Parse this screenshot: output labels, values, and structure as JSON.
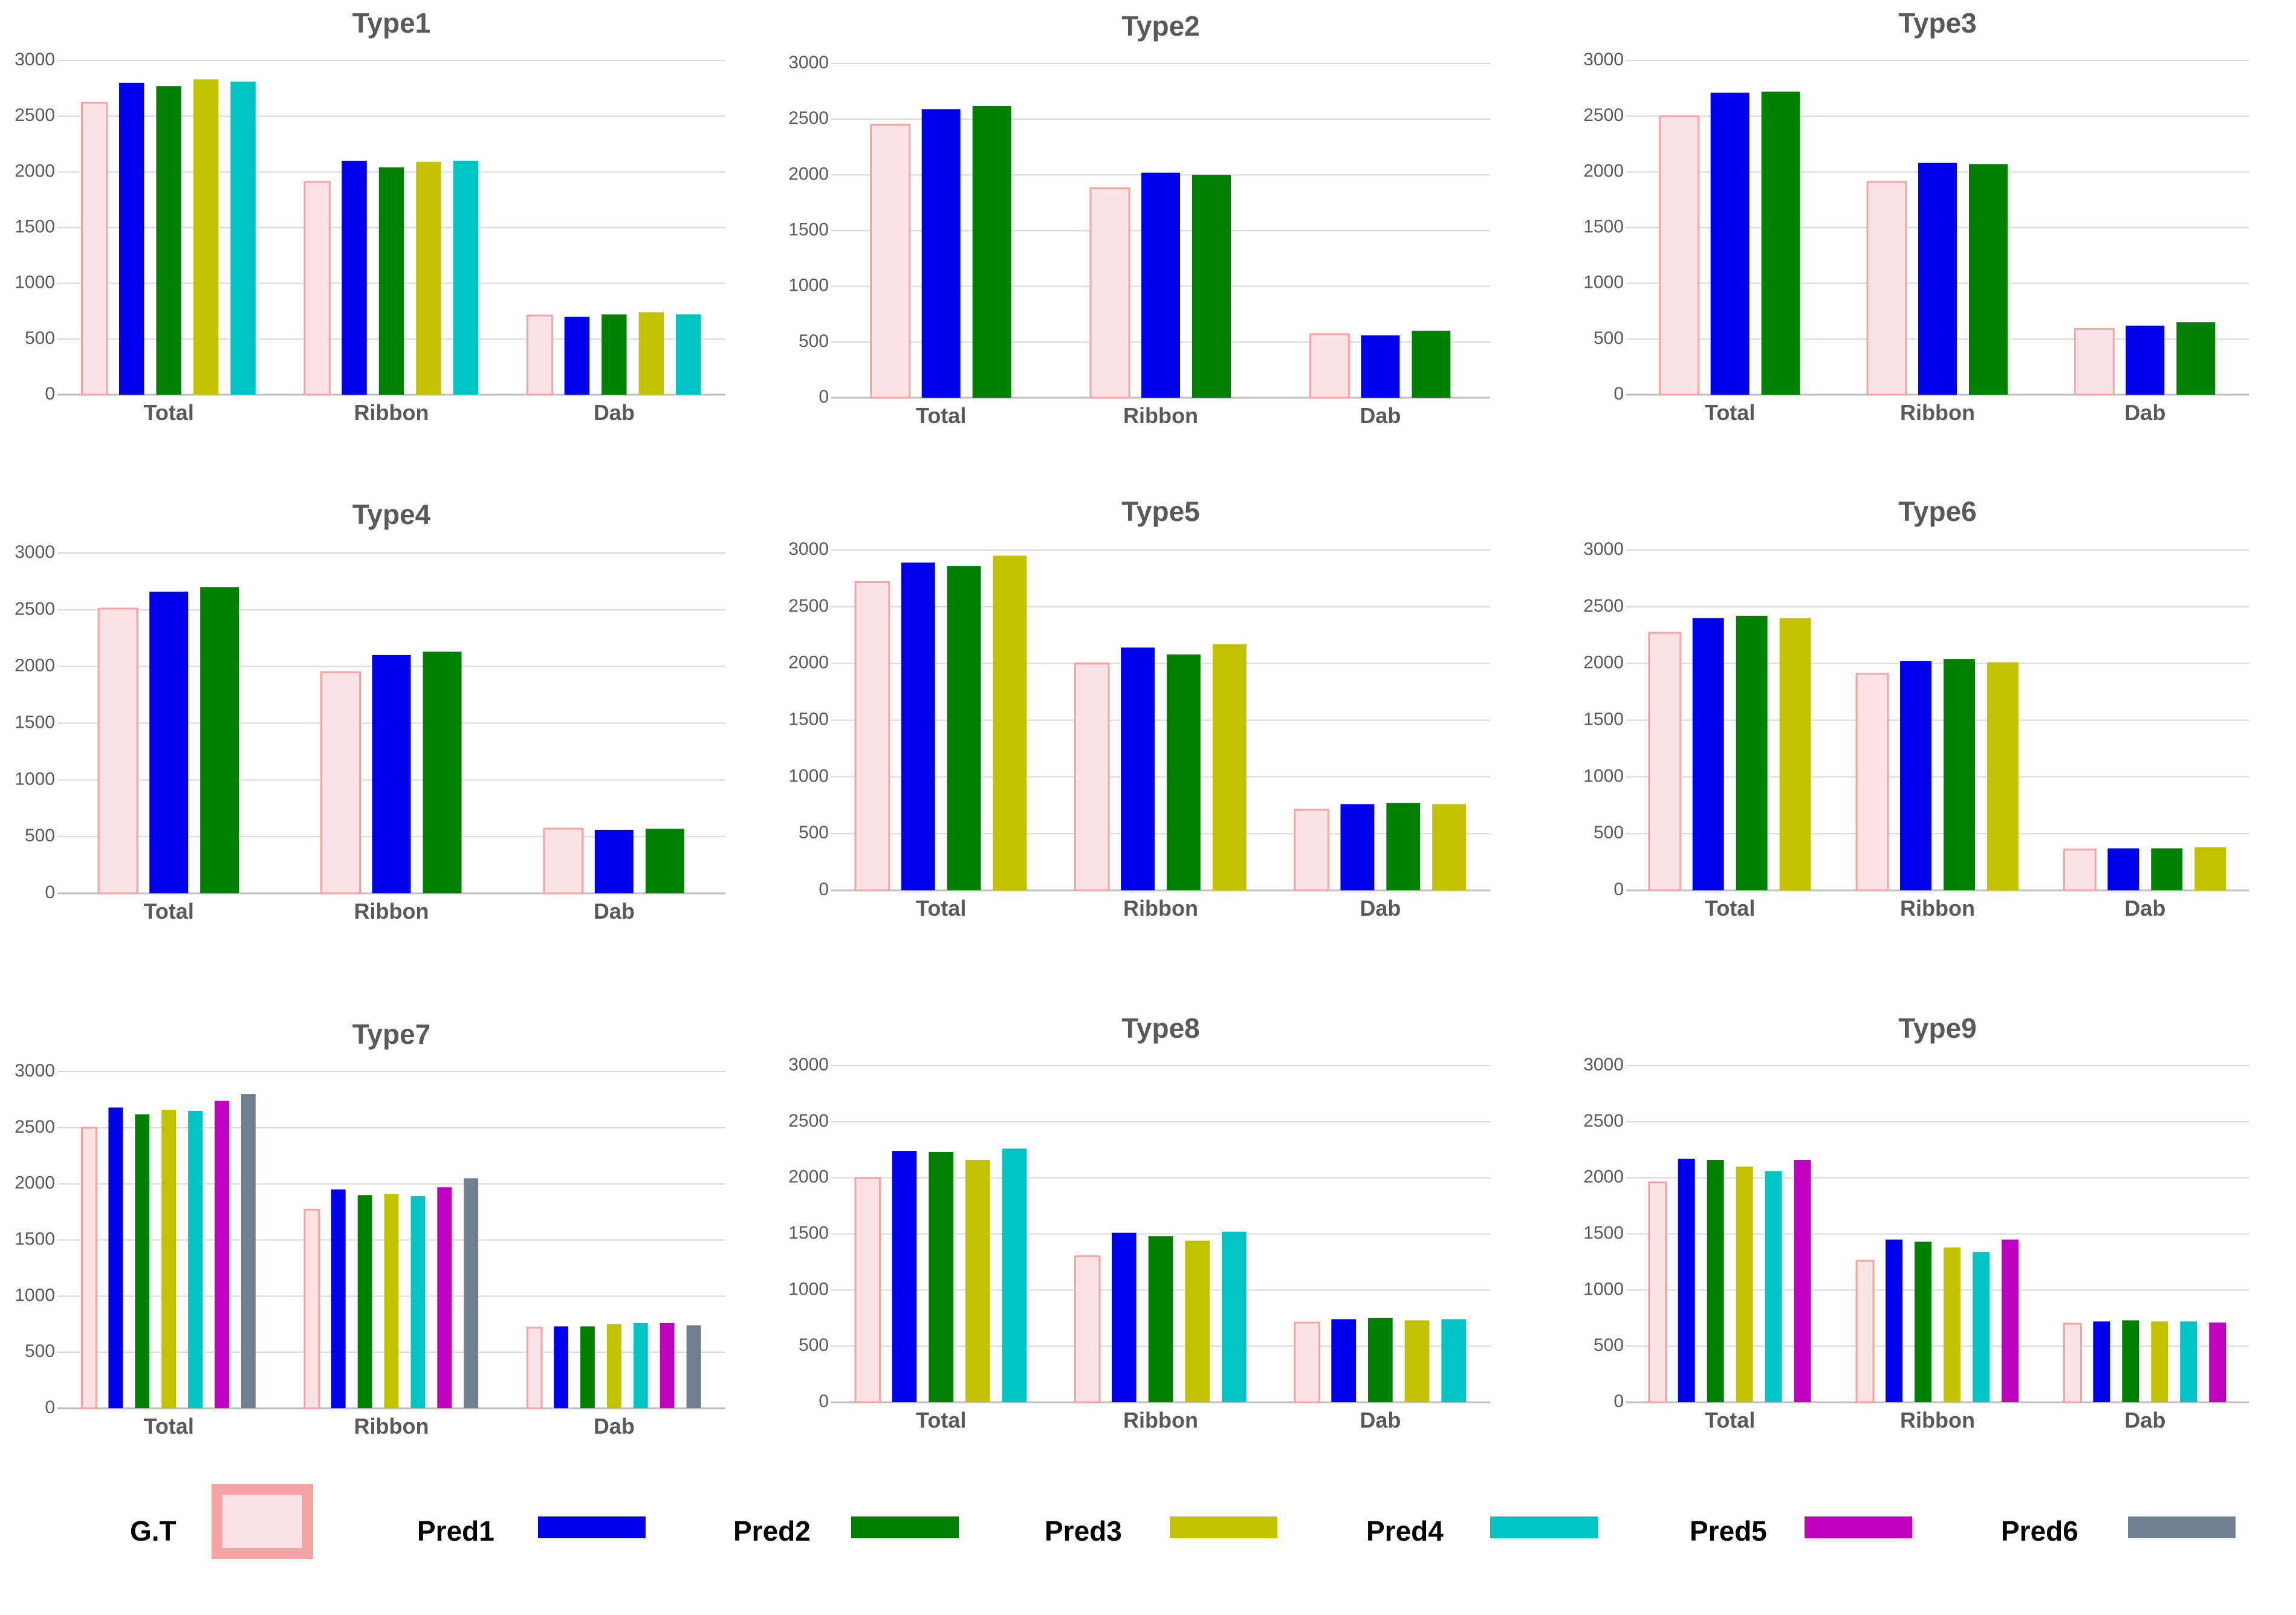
{
  "chart_data": [
    {
      "type": "bar",
      "title": "Type1",
      "categories": [
        "Total",
        "Ribbon",
        "Dab"
      ],
      "ylim": [
        0,
        3000
      ],
      "yticks": [
        0,
        500,
        1000,
        1500,
        2000,
        2500,
        3000
      ],
      "series": [
        {
          "name": "G.T",
          "values": [
            2620,
            1910,
            710
          ]
        },
        {
          "name": "Pred1",
          "values": [
            2800,
            2100,
            700
          ]
        },
        {
          "name": "Pred2",
          "values": [
            2770,
            2040,
            720
          ]
        },
        {
          "name": "Pred3",
          "values": [
            2830,
            2090,
            740
          ]
        },
        {
          "name": "Pred4",
          "values": [
            2810,
            2100,
            720
          ]
        }
      ]
    },
    {
      "type": "bar",
      "title": "Type2",
      "categories": [
        "Total",
        "Ribbon",
        "Dab"
      ],
      "ylim": [
        0,
        3000
      ],
      "yticks": [
        0,
        500,
        1000,
        1500,
        2000,
        2500,
        3000
      ],
      "series": [
        {
          "name": "G.T",
          "values": [
            2450,
            1880,
            570
          ]
        },
        {
          "name": "Pred1",
          "values": [
            2590,
            2020,
            560
          ]
        },
        {
          "name": "Pred2",
          "values": [
            2620,
            2000,
            600
          ]
        }
      ]
    },
    {
      "type": "bar",
      "title": "Type3",
      "categories": [
        "Total",
        "Ribbon",
        "Dab"
      ],
      "ylim": [
        0,
        3000
      ],
      "yticks": [
        0,
        500,
        1000,
        1500,
        2000,
        2500,
        3000
      ],
      "series": [
        {
          "name": "G.T",
          "values": [
            2500,
            1910,
            590
          ]
        },
        {
          "name": "Pred1",
          "values": [
            2710,
            2080,
            620
          ]
        },
        {
          "name": "Pred2",
          "values": [
            2720,
            2070,
            650
          ]
        }
      ]
    },
    {
      "type": "bar",
      "title": "Type4",
      "categories": [
        "Total",
        "Ribbon",
        "Dab"
      ],
      "ylim": [
        0,
        3000
      ],
      "yticks": [
        0,
        500,
        1000,
        1500,
        2000,
        2500,
        3000
      ],
      "series": [
        {
          "name": "G.T",
          "values": [
            2510,
            1950,
            570
          ]
        },
        {
          "name": "Pred1",
          "values": [
            2660,
            2100,
            560
          ]
        },
        {
          "name": "Pred2",
          "values": [
            2700,
            2130,
            570
          ]
        }
      ]
    },
    {
      "type": "bar",
      "title": "Type5",
      "categories": [
        "Total",
        "Ribbon",
        "Dab"
      ],
      "ylim": [
        0,
        3000
      ],
      "yticks": [
        0,
        500,
        1000,
        1500,
        2000,
        2500,
        3000
      ],
      "series": [
        {
          "name": "G.T",
          "values": [
            2720,
            2000,
            710
          ]
        },
        {
          "name": "Pred1",
          "values": [
            2890,
            2140,
            760
          ]
        },
        {
          "name": "Pred2",
          "values": [
            2860,
            2080,
            770
          ]
        },
        {
          "name": "Pred3",
          "values": [
            2950,
            2170,
            760
          ]
        }
      ]
    },
    {
      "type": "bar",
      "title": "Type6",
      "categories": [
        "Total",
        "Ribbon",
        "Dab"
      ],
      "ylim": [
        0,
        3000
      ],
      "yticks": [
        0,
        500,
        1000,
        1500,
        2000,
        2500,
        3000
      ],
      "series": [
        {
          "name": "G.T",
          "values": [
            2270,
            1910,
            360
          ]
        },
        {
          "name": "Pred1",
          "values": [
            2400,
            2020,
            370
          ]
        },
        {
          "name": "Pred2",
          "values": [
            2420,
            2040,
            370
          ]
        },
        {
          "name": "Pred3",
          "values": [
            2400,
            2010,
            380
          ]
        }
      ]
    },
    {
      "type": "bar",
      "title": "Type7",
      "categories": [
        "Total",
        "Ribbon",
        "Dab"
      ],
      "ylim": [
        0,
        3000
      ],
      "yticks": [
        0,
        500,
        1000,
        1500,
        2000,
        2500,
        3000
      ],
      "series": [
        {
          "name": "G.T",
          "values": [
            2500,
            1770,
            720
          ]
        },
        {
          "name": "Pred1",
          "values": [
            2680,
            1950,
            730
          ]
        },
        {
          "name": "Pred2",
          "values": [
            2620,
            1900,
            730
          ]
        },
        {
          "name": "Pred3",
          "values": [
            2660,
            1910,
            750
          ]
        },
        {
          "name": "Pred4",
          "values": [
            2650,
            1890,
            760
          ]
        },
        {
          "name": "Pred5",
          "values": [
            2740,
            1970,
            760
          ]
        },
        {
          "name": "Pred6",
          "values": [
            2800,
            2050,
            740
          ]
        }
      ]
    },
    {
      "type": "bar",
      "title": "Type8",
      "categories": [
        "Total",
        "Ribbon",
        "Dab"
      ],
      "ylim": [
        0,
        3000
      ],
      "yticks": [
        0,
        500,
        1000,
        1500,
        2000,
        2500,
        3000
      ],
      "series": [
        {
          "name": "G.T",
          "values": [
            2000,
            1300,
            710
          ]
        },
        {
          "name": "Pred1",
          "values": [
            2240,
            1510,
            740
          ]
        },
        {
          "name": "Pred2",
          "values": [
            2230,
            1480,
            750
          ]
        },
        {
          "name": "Pred3",
          "values": [
            2160,
            1440,
            730
          ]
        },
        {
          "name": "Pred4",
          "values": [
            2260,
            1520,
            740
          ]
        }
      ]
    },
    {
      "type": "bar",
      "title": "Type9",
      "categories": [
        "Total",
        "Ribbon",
        "Dab"
      ],
      "ylim": [
        0,
        3000
      ],
      "yticks": [
        0,
        500,
        1000,
        1500,
        2000,
        2500,
        3000
      ],
      "series": [
        {
          "name": "G.T",
          "values": [
            1960,
            1260,
            700
          ]
        },
        {
          "name": "Pred1",
          "values": [
            2170,
            1450,
            720
          ]
        },
        {
          "name": "Pred2",
          "values": [
            2160,
            1430,
            730
          ]
        },
        {
          "name": "Pred3",
          "values": [
            2100,
            1380,
            720
          ]
        },
        {
          "name": "Pred4",
          "values": [
            2060,
            1340,
            720
          ]
        },
        {
          "name": "Pred5",
          "values": [
            2160,
            1450,
            710
          ]
        }
      ]
    }
  ],
  "legend": {
    "items": [
      {
        "label": "G.T",
        "color": "#fde3e3",
        "border": "#f5a3a3"
      },
      {
        "label": "Pred1",
        "color": "#0000ee"
      },
      {
        "label": "Pred2",
        "color": "#008000"
      },
      {
        "label": "Pred3",
        "color": "#c2c200"
      },
      {
        "label": "Pred4",
        "color": "#00c4c4"
      },
      {
        "label": "Pred5",
        "color": "#c000c0"
      },
      {
        "label": "Pred6",
        "color": "#708090"
      }
    ]
  }
}
